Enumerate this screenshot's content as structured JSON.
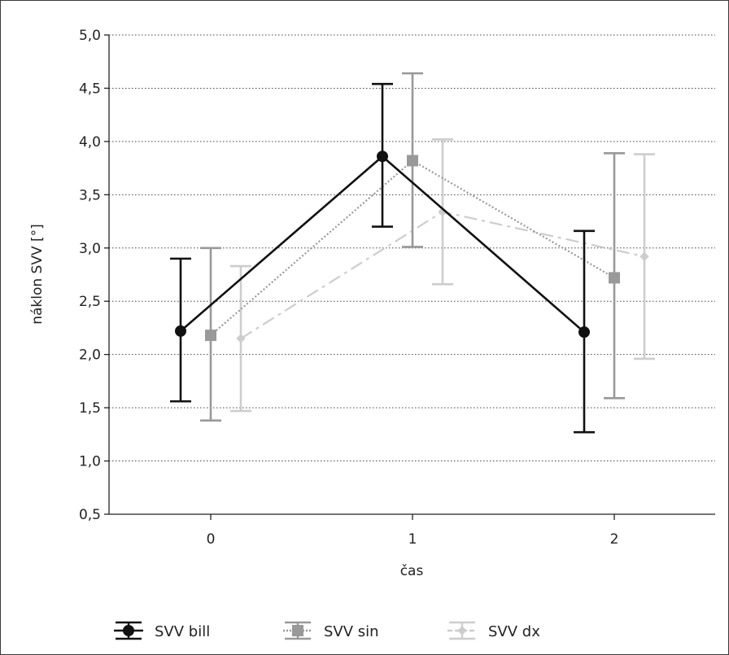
{
  "chart_data": {
    "type": "line",
    "xlabel": "čas",
    "ylabel": "náklon SVV [°]",
    "categories": [
      "0",
      "1",
      "2"
    ],
    "ylim": [
      0.5,
      5.0
    ],
    "yticks": [
      "0,5",
      "1,0",
      "1,5",
      "2,0",
      "2,5",
      "3,0",
      "3,5",
      "4,0",
      "4,5",
      "5,0"
    ],
    "grid": "horizontal dotted",
    "legend_position": "bottom",
    "series": [
      {
        "name": "SVV bill",
        "color": "#111111",
        "marker": "circle",
        "line": "solid",
        "values": [
          2.22,
          3.86,
          2.21
        ],
        "err_low": [
          1.56,
          3.2,
          1.27
        ],
        "err_high": [
          2.9,
          4.54,
          3.16
        ]
      },
      {
        "name": "SVV sin",
        "color": "#999999",
        "marker": "square",
        "line": "dotted",
        "values": [
          2.18,
          3.82,
          2.72
        ],
        "err_low": [
          1.38,
          3.01,
          1.59
        ],
        "err_high": [
          3.0,
          4.64,
          3.89
        ]
      },
      {
        "name": "SVV dx",
        "color": "#cdcdcd",
        "marker": "diamond",
        "line": "dash-dot",
        "values": [
          2.15,
          3.34,
          2.92
        ],
        "err_low": [
          1.47,
          2.66,
          1.96
        ],
        "err_high": [
          2.83,
          4.02,
          3.88
        ]
      }
    ]
  }
}
